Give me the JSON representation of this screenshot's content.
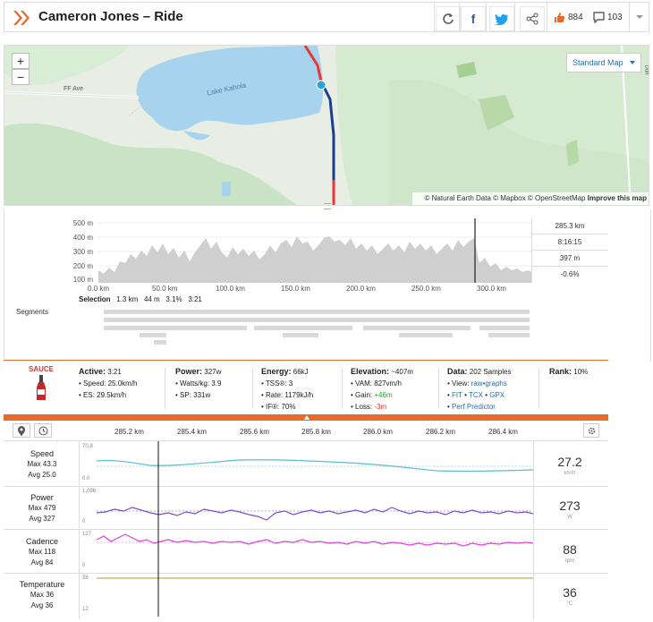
{
  "header": {
    "title": "Cameron Jones – Ride",
    "likes_count": "884",
    "comments_count": "103"
  },
  "map": {
    "zoom_in": "+",
    "zoom_out": "−",
    "map_type": "Standard Map",
    "attribution": "© Natural Earth Data © Mapbox © OpenStreetMap",
    "improve_link": "Improve this map",
    "labels": {
      "road": "FF Ave",
      "lake": "Lake Kahola",
      "edge": "Dun"
    }
  },
  "elevation": {
    "y_ticks": [
      "500 m",
      "400 m",
      "300 m",
      "200 m",
      "100 m"
    ],
    "x_ticks": [
      "0.0 km",
      "50.0 km",
      "100.0 km",
      "150.0 km",
      "200.0 km",
      "250.0 km",
      "300.0 km"
    ],
    "stats": [
      "285.3 km",
      "8:16:15",
      "397 m",
      "-0.6%"
    ],
    "selection": {
      "label": "Selection",
      "distance": "1.3 km",
      "elevation": "44 m",
      "grade": "3.1%",
      "time": "3:21"
    },
    "segments_label": "Segments"
  },
  "info": {
    "sauce_label": "SAUCE",
    "active": {
      "title": "Active:",
      "value": "3:21",
      "lines": [
        "• Speed: 25.0km/h",
        "• ES: 29.5km/h"
      ]
    },
    "power": {
      "title": "Power:",
      "value": "327w",
      "lines": [
        "• Watts/kg: 3.9",
        "• SP: 331w"
      ]
    },
    "energy": {
      "title": "Energy:",
      "value": "66kJ",
      "lines": [
        "• TSS®: 3",
        "• Rate: 1179kJ/h",
        "• IF®: 70%"
      ]
    },
    "elevation": {
      "title": "Elevation:",
      "value": "~407m",
      "vam": "• VAM: 827vm/h",
      "gain_label": "• Gain: ",
      "gain": "+46m",
      "loss_label": "• Loss: ",
      "loss": "-3m"
    },
    "data": {
      "title": "Data:",
      "value": "202 Samples",
      "view_label": "• View: ",
      "raw": "raw",
      "graphs": "graphs",
      "fit": "FIT",
      "tcx": "TCX",
      "gpx": "GPX",
      "perf": "Perf Predictor"
    },
    "rank": {
      "title": "Rank:",
      "value": "10%"
    }
  },
  "streams": {
    "x_ticks": [
      "285.2 km",
      "285.4 km",
      "285.6 km",
      "285.8 km",
      "286.0 km",
      "286.2 km",
      "286.4 km"
    ],
    "rows": [
      {
        "title": "Speed",
        "max": "Max 43.3",
        "avg": "Avg 25.0",
        "value": "27.2",
        "unit": "km/h",
        "axis_top": "70.8",
        "axis_bottom": "0.0",
        "color": "#5bbcd6"
      },
      {
        "title": "Power",
        "max": "Max 479",
        "avg": "Avg 327",
        "value": "273",
        "unit": "W",
        "axis_top": "1,096",
        "axis_bottom": "0",
        "color": "#7c4dcc"
      },
      {
        "title": "Cadence",
        "max": "Max 118",
        "avg": "Avg 84",
        "value": "88",
        "unit": "rpm",
        "axis_top": "127",
        "axis_bottom": "0",
        "color": "#e040e0"
      },
      {
        "title": "Temperature",
        "max": "Max 36",
        "avg": "Avg 36",
        "value": "36",
        "unit": "°C",
        "axis_top": "38",
        "axis_bottom": "12",
        "color": "#b5b060"
      }
    ]
  },
  "colors": {
    "accent": "#e86a2b",
    "link": "#2a6fb0",
    "gain": "#2a9d3a",
    "loss": "#d9342b"
  }
}
